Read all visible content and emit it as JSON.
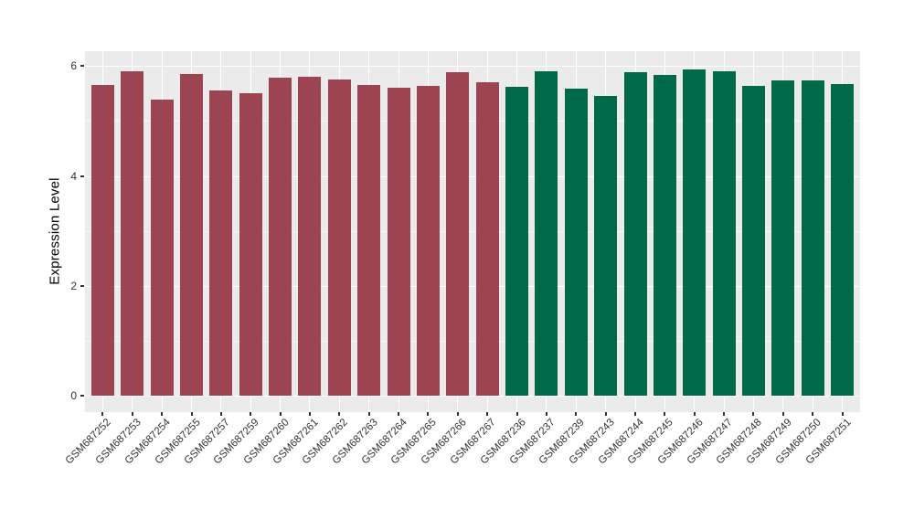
{
  "figure": {
    "title": "",
    "ylabel": "Expression Level",
    "background_color": "#ffffff",
    "panel_background_color": "#ebebeb",
    "gridline_color": "#ffffff",
    "axis_text_color": "#333333",
    "axis_title_color": "#000000"
  },
  "chart_data": {
    "type": "bar",
    "title": "",
    "xlabel": "",
    "ylabel": "Expression Level",
    "categories": [
      "GSM687252",
      "GSM687253",
      "GSM687254",
      "GSM687255",
      "GSM687257",
      "GSM687259",
      "GSM687260",
      "GSM687261",
      "GSM687262",
      "GSM687263",
      "GSM687264",
      "GSM687265",
      "GSM687266",
      "GSM687267",
      "GSM687236",
      "GSM687237",
      "GSM687239",
      "GSM687243",
      "GSM687244",
      "GSM687245",
      "GSM687246",
      "GSM687247",
      "GSM687248",
      "GSM687249",
      "GSM687250",
      "GSM687251"
    ],
    "values": [
      5.66,
      5.9,
      5.38,
      5.86,
      5.56,
      5.51,
      5.79,
      5.81,
      5.76,
      5.65,
      5.61,
      5.63,
      5.89,
      5.71,
      5.62,
      5.9,
      5.59,
      5.46,
      5.88,
      5.84,
      5.93,
      5.91,
      5.64,
      5.73,
      5.74,
      5.67
    ],
    "groups": [
      "g1",
      "g1",
      "g1",
      "g1",
      "g1",
      "g1",
      "g1",
      "g1",
      "g1",
      "g1",
      "g1",
      "g1",
      "g1",
      "g1",
      "g2",
      "g2",
      "g2",
      "g2",
      "g2",
      "g2",
      "g2",
      "g2",
      "g2",
      "g2",
      "g2",
      "g2"
    ],
    "group_palette": {
      "g1": "#9d4452",
      "g2": "#006a48"
    },
    "yticks_major": [
      0,
      2,
      4,
      6
    ],
    "yticks_minor": [
      1,
      3,
      5
    ],
    "ylim": [
      -0.3,
      6.26
    ],
    "x_label_angle_deg": 45,
    "legend": "none",
    "grid": "white major+minor horizontal, white vertical at each category, on gray panel"
  }
}
